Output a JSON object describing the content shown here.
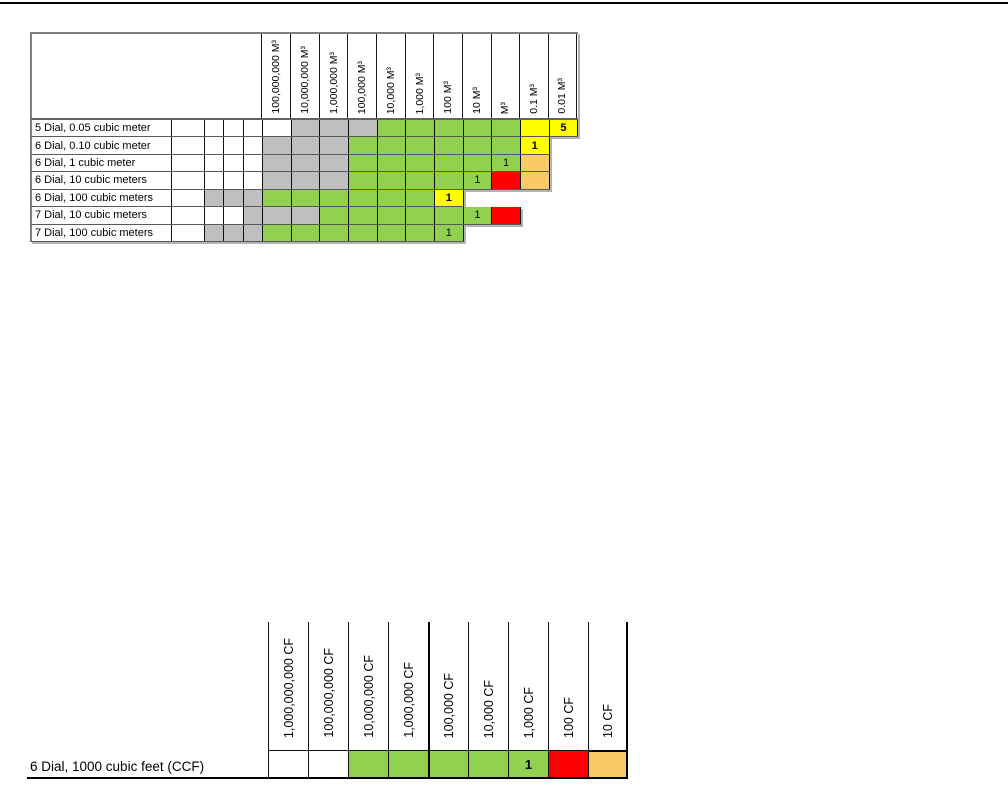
{
  "colors": {
    "white": "#FFFFFF",
    "gray": "#BFBFBF",
    "green": "#92D050",
    "yellow": "#FFFF00",
    "red": "#FF0000",
    "orange": "#F9CA68"
  },
  "cubic_meter_table": {
    "unit_columns": [
      "100,000,000 M³",
      "10,000,000 M³",
      "1,000,000 M³",
      "100,000 M³",
      "10,000 M³",
      "1,000 M³",
      "100 M³",
      "10 M³",
      "M³",
      "0.1 M³",
      "0.01 M³"
    ],
    "rows": [
      {
        "label": "5 Dial, 0.05 cubic meter",
        "prefix_cells": [
          "white",
          "white",
          "white",
          "white"
        ],
        "cells": [
          {
            "color": "white"
          },
          {
            "color": "gray"
          },
          {
            "color": "gray"
          },
          {
            "color": "gray"
          },
          {
            "color": "green"
          },
          {
            "color": "green"
          },
          {
            "color": "green"
          },
          {
            "color": "green"
          },
          {
            "color": "green"
          },
          {
            "color": "yellow"
          },
          {
            "color": "yellow",
            "text": "5",
            "bold": true
          }
        ]
      },
      {
        "label": "6 Dial, 0.10 cubic meter",
        "prefix_cells": [
          "white",
          "white",
          "white",
          "white"
        ],
        "cells": [
          {
            "color": "gray"
          },
          {
            "color": "gray"
          },
          {
            "color": "gray"
          },
          {
            "color": "green"
          },
          {
            "color": "green"
          },
          {
            "color": "green"
          },
          {
            "color": "green"
          },
          {
            "color": "green"
          },
          {
            "color": "green"
          },
          {
            "color": "yellow",
            "text": "1",
            "bold": true
          }
        ]
      },
      {
        "label": "6 Dial, 1 cubic meter",
        "prefix_cells": [
          "white",
          "white",
          "white",
          "white"
        ],
        "cells": [
          {
            "color": "gray"
          },
          {
            "color": "gray"
          },
          {
            "color": "gray"
          },
          {
            "color": "green"
          },
          {
            "color": "green"
          },
          {
            "color": "green"
          },
          {
            "color": "green"
          },
          {
            "color": "green"
          },
          {
            "color": "green",
            "text": "1"
          },
          {
            "color": "orange"
          }
        ]
      },
      {
        "label": "6 Dial, 10 cubic meters",
        "prefix_cells": [
          "white",
          "white",
          "white",
          "white"
        ],
        "cells": [
          {
            "color": "gray"
          },
          {
            "color": "gray"
          },
          {
            "color": "gray"
          },
          {
            "color": "green"
          },
          {
            "color": "green"
          },
          {
            "color": "green"
          },
          {
            "color": "green"
          },
          {
            "color": "green",
            "text": "1"
          },
          {
            "color": "red"
          },
          {
            "color": "orange"
          }
        ]
      },
      {
        "label": "6 Dial, 100 cubic meters",
        "prefix_cells": [
          "white",
          "gray",
          "gray",
          "gray"
        ],
        "cells": [
          {
            "color": "green"
          },
          {
            "color": "green"
          },
          {
            "color": "green"
          },
          {
            "color": "green"
          },
          {
            "color": "green"
          },
          {
            "color": "green"
          },
          {
            "color": "yellow",
            "text": "1",
            "bold": true
          }
        ]
      },
      {
        "label": "7 Dial, 10 cubic meters",
        "prefix_cells": [
          "white",
          "white",
          "white",
          "gray"
        ],
        "cells": [
          {
            "color": "gray"
          },
          {
            "color": "gray"
          },
          {
            "color": "green"
          },
          {
            "color": "green"
          },
          {
            "color": "green"
          },
          {
            "color": "green"
          },
          {
            "color": "green"
          },
          {
            "color": "green",
            "text": "1"
          },
          {
            "color": "red"
          }
        ]
      },
      {
        "label": "7 Dial, 100 cubic meters",
        "prefix_cells": [
          "white",
          "gray",
          "gray",
          "gray"
        ],
        "cells": [
          {
            "color": "green"
          },
          {
            "color": "green"
          },
          {
            "color": "green"
          },
          {
            "color": "green"
          },
          {
            "color": "green"
          },
          {
            "color": "green"
          },
          {
            "color": "green",
            "text": "1"
          }
        ]
      }
    ]
  },
  "cubic_feet_table": {
    "unit_columns": [
      "1,000,000,000 CF",
      "100,000,000 CF",
      "10,000,000 CF",
      "1,000,000 CF",
      "100,000 CF",
      "10,000 CF",
      "1,000 CF",
      "100 CF",
      "10 CF"
    ],
    "rows": [
      {
        "label": "6 Dial, 1000 cubic feet (CCF)",
        "cells": [
          {
            "color": "white"
          },
          {
            "color": "white"
          },
          {
            "color": "green"
          },
          {
            "color": "green"
          },
          {
            "color": "green"
          },
          {
            "color": "green"
          },
          {
            "color": "green",
            "text": "1",
            "bold": true
          },
          {
            "color": "red"
          },
          {
            "color": "orange"
          }
        ]
      }
    ]
  }
}
